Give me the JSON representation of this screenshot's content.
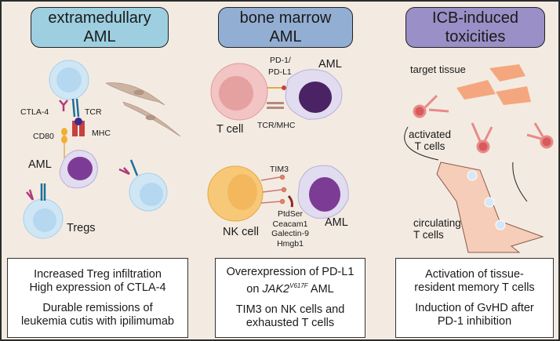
{
  "panels": [
    {
      "title_line1": "extramedullary",
      "title_line2": "AML",
      "color": "#9dcfe0",
      "labels": {
        "ctla4": "CTLA-4",
        "tcr": "TCR",
        "cd80": "CD80",
        "mhc": "MHC",
        "aml": "AML",
        "tregs": "Tregs"
      },
      "box": {
        "p1_l1": "Increased Treg infiltration",
        "p1_l2": "High expression of CTLA-4",
        "p2_l1": "Durable remissions of",
        "p2_l2": "leukemia cutis with ipilimumab"
      }
    },
    {
      "title_line1": "bone marrow",
      "title_line2": "AML",
      "color": "#93aed3",
      "labels": {
        "pd1": "PD-1/",
        "pdl1": "PD-L1",
        "aml_top": "AML",
        "tcell": "T cell",
        "tcrmhc": "TCR/MHC",
        "tim3": "TIM3",
        "nkcell": "NK cell",
        "ptdser": "PtdSer",
        "ceacam1": "Ceacam1",
        "galectin9": "Galectin-9",
        "hmgb1": "Hmgb1",
        "aml_bottom": "AML"
      },
      "box": {
        "p1_l1": "Overexpression of PD-L1",
        "p1_l2_pre": "on ",
        "p1_gene": "JAK2",
        "p1_sup": "V617F",
        "p1_l2_post": " AML",
        "p2_l1": "TIM3 on NK cells and",
        "p2_l2": "exhausted T cells"
      }
    },
    {
      "title_line1": "ICB-induced",
      "title_line2": "toxicities",
      "color": "#9a8fc6",
      "labels": {
        "target": "target tissue",
        "activated_l1": "activated",
        "activated_l2": "T cells",
        "circulating_l1": "circulating",
        "circulating_l2": "T cells"
      },
      "box": {
        "p1_l1": "Activation of tissue-",
        "p1_l2": "resident memory T cells",
        "p2_l1": "Induction of GvHD after",
        "p2_l2": "PD-1 inhibition"
      }
    }
  ]
}
